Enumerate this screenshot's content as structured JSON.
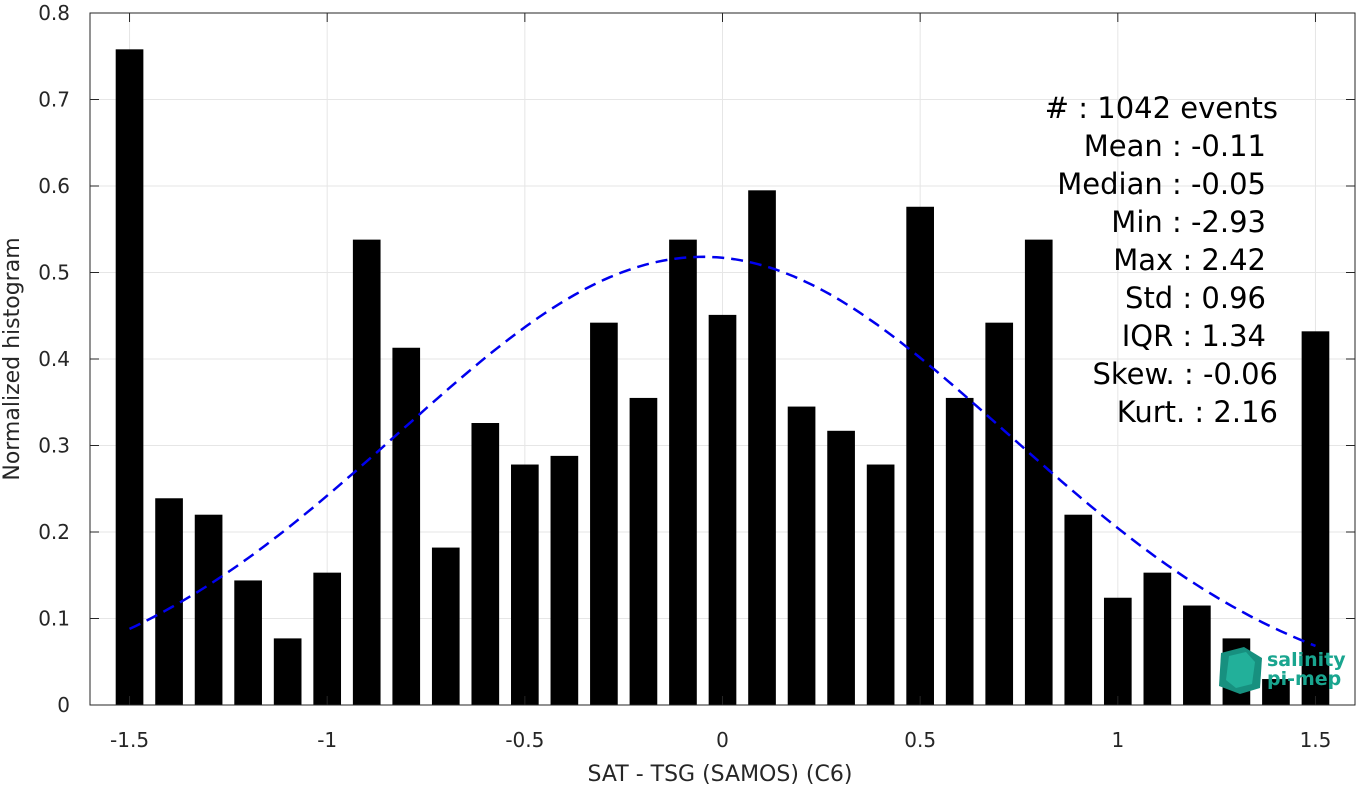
{
  "chart_data": {
    "type": "bar",
    "xlabel": "SAT - TSG (SAMOS) (C6)",
    "ylabel": "Normalized histogram",
    "xlim": [
      -1.6,
      1.6
    ],
    "ylim": [
      0,
      0.8
    ],
    "grid": true,
    "xticks": [
      -1.5,
      -1,
      -0.5,
      0,
      0.5,
      1,
      1.5
    ],
    "xtick_labels": [
      "-1.5",
      "-1",
      "-0.5",
      "0",
      "0.5",
      "1",
      "1.5"
    ],
    "yticks": [
      0,
      0.1,
      0.2,
      0.3,
      0.4,
      0.5,
      0.6,
      0.7,
      0.8
    ],
    "ytick_labels": [
      "0",
      "0.1",
      "0.2",
      "0.3",
      "0.4",
      "0.5",
      "0.6",
      "0.7",
      "0.8"
    ],
    "bar_color": "#000000",
    "bins": [
      -1.5,
      -1.4,
      -1.3,
      -1.2,
      -1.1,
      -1.0,
      -0.9,
      -0.8,
      -0.7,
      -0.6,
      -0.5,
      -0.4,
      -0.3,
      -0.2,
      -0.1,
      0.0,
      0.1,
      0.2,
      0.3,
      0.4,
      0.5,
      0.6,
      0.7,
      0.8,
      0.9,
      1.0,
      1.1,
      1.2,
      1.3,
      1.4,
      1.5
    ],
    "values": [
      0.758,
      0.239,
      0.22,
      0.144,
      0.077,
      0.153,
      0.538,
      0.413,
      0.182,
      0.326,
      0.278,
      0.288,
      0.442,
      0.355,
      0.538,
      0.451,
      0.595,
      0.345,
      0.317,
      0.278,
      0.576,
      0.355,
      0.442,
      0.538,
      0.22,
      0.124,
      0.153,
      0.115,
      0.077,
      0.03,
      0.432
    ],
    "fit_curve": {
      "style": "dashed",
      "color": "#0000ee",
      "mean": -0.05,
      "std": 0.77,
      "x_range": [
        -1.5,
        1.5
      ]
    },
    "stats": [
      "#  : 1042 events",
      "Mean : -0.11",
      "Median : -0.05",
      "Min : -2.93",
      "Max : 2.42",
      "Std : 0.96",
      "IQR : 1.34",
      "Skew. : -0.06",
      "Kurt. : 2.16"
    ]
  },
  "logo": {
    "line1": "salinity",
    "line2": "pi-mep",
    "color": "#19a58f"
  }
}
